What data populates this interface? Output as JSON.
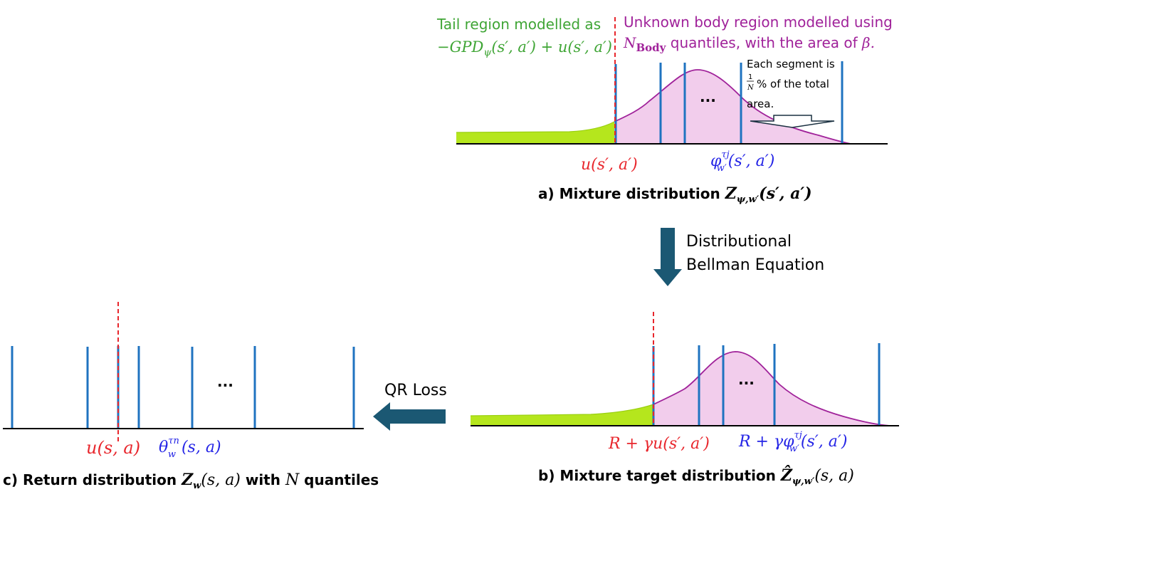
{
  "panel_a": {
    "tail_label_line1": "Tail region modelled as",
    "tail_label_line2": "−GPD",
    "tail_label_line2_sub": "ψ",
    "tail_label_line2_rest": "(s′, a′) + u(s′, a′)",
    "body_label_line1": "Unknown body region modelled using",
    "body_label_N": "N",
    "body_label_sub": "Body",
    "body_label_rest": " quantiles, with the area of ",
    "body_label_beta": "β.",
    "segment_note_line1": "Each segment is",
    "segment_note_frac_num": "1",
    "segment_note_frac_den": "N",
    "segment_note_line2": "% of the total",
    "segment_note_line3": "area.",
    "ellipsis": "...",
    "threshold_label": "u(s′, a′)",
    "quantile_label_phi": "φ",
    "quantile_label_sup": "τj",
    "quantile_label_sub": "w′",
    "quantile_label_rest": "(s′, a′)",
    "caption_prefix": "a) Mixture distribution ",
    "caption_Z": "Z",
    "caption_sub": "ψ,w′",
    "caption_rest": "(s′, a′)"
  },
  "arrow_down": {
    "line1": "Distributional",
    "line2": "Bellman Equation"
  },
  "panel_b": {
    "ellipsis": "...",
    "threshold_label": "R + γu(s′, a′)",
    "quantile_label_prefix": "R + γφ",
    "quantile_label_sup": "τj",
    "quantile_label_sub": "w′",
    "quantile_label_rest": "(s′, a′)",
    "caption_prefix": "b) Mixture target distribution ",
    "caption_Z": "Ẑ",
    "caption_sub": "ψ,w′",
    "caption_rest": "(s, a)"
  },
  "arrow_left": {
    "label": "QR Loss"
  },
  "panel_c": {
    "ellipsis": "...",
    "threshold_label": "u(s, a)",
    "quantile_label_theta": "θ",
    "quantile_label_sup": "τn",
    "quantile_label_sub": "w",
    "quantile_label_rest": "(s, a)",
    "caption_prefix": "c) Return distribution ",
    "caption_Z": "Z",
    "caption_sub": "w",
    "caption_rest": "(s, a)",
    "caption_with": " with ",
    "caption_N": "N",
    "caption_suffix": " quantiles"
  },
  "colors": {
    "tail_green": "#b5e61d",
    "tail_text_green": "#3fa535",
    "body_fill": "#f2cdec",
    "body_curve": "#a0229a",
    "body_text_purple": "#a0229a",
    "quantile_blue": "#1f73c0",
    "threshold_red": "#e8262c",
    "math_blue": "#2424e6",
    "arrow_fill": "#1b5873",
    "axis": "#000000"
  }
}
